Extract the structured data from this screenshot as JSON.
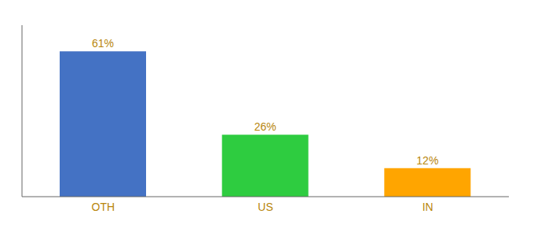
{
  "chart_data": {
    "type": "bar",
    "categories": [
      "OTH",
      "US",
      "IN"
    ],
    "values": [
      61,
      26,
      12
    ],
    "value_labels": [
      "61%",
      "26%",
      "12%"
    ],
    "colors": [
      "#4472C4",
      "#2ECC40",
      "#FFA500"
    ],
    "ylim": [
      0,
      72
    ],
    "grid": false,
    "data_labels": true,
    "tick_labels": "x"
  }
}
